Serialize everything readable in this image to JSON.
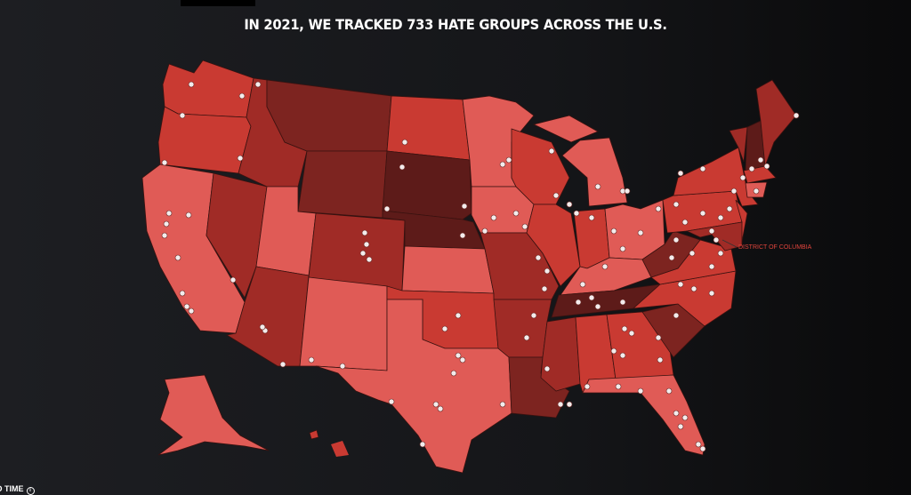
{
  "title": "IN 2021, WE TRACKED 733 HATE GROUPS ACROSS THE U.S.",
  "dc_label": "DISTRICT OF COLUMBIA",
  "footer": {
    "text": "D TIME",
    "icon": "info-icon"
  },
  "palette": {
    "1": "#e05b56",
    "2": "#c93a32",
    "3": "#a02b26",
    "4": "#7d2420",
    "5": "#5d1b19"
  },
  "marker_color": "#f3ecec",
  "state_shades": {
    "WA": 2,
    "OR": 2,
    "CA": 1,
    "NV": 3,
    "ID": 3,
    "MT": 4,
    "WY": 4,
    "UT": 1,
    "CO": 3,
    "AZ": 3,
    "NM": 1,
    "ND": 2,
    "SD": 5,
    "NE": 5,
    "KS": 1,
    "OK": 2,
    "TX": 1,
    "MN": 1,
    "IA": 1,
    "MO": 3,
    "AR": 3,
    "LA": 4,
    "WI": 2,
    "IL": 2,
    "MI": 1,
    "MIU": 1,
    "IN": 2,
    "OH": 1,
    "KY": 1,
    "TN": 5,
    "MS": 3,
    "AL": 2,
    "GA": 2,
    "FL": 1,
    "SC": 4,
    "NC": 2,
    "VA": 2,
    "WV": 4,
    "PA": 2,
    "NY": 2,
    "VT": 3,
    "NH": 5,
    "ME": 3,
    "MA": 2,
    "CT": 1,
    "NJ": 2,
    "MD": 3,
    "AK": 1,
    "HI": 2
  }
}
